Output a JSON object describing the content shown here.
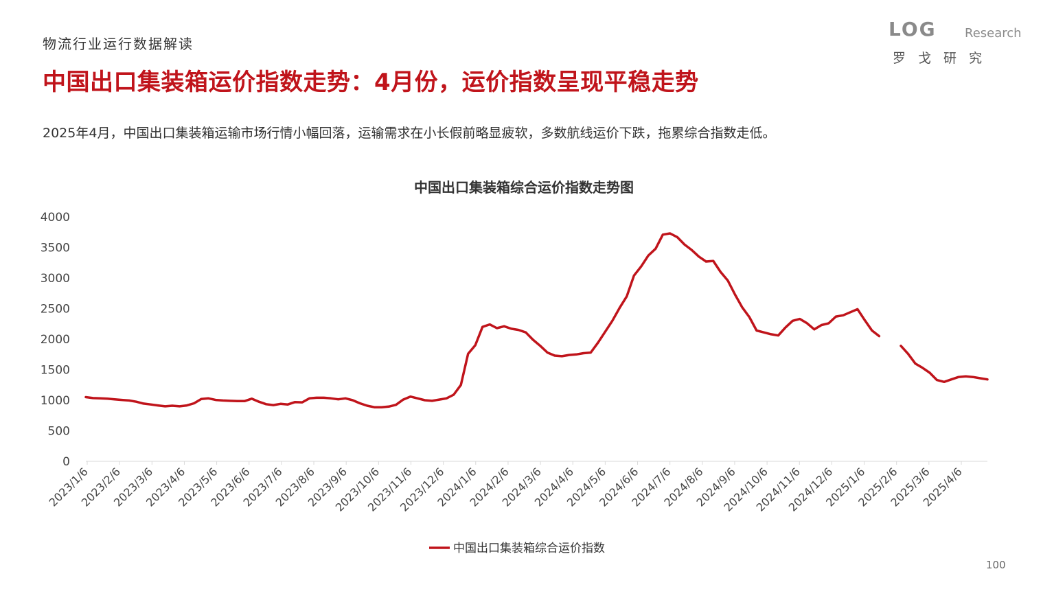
{
  "header": {
    "section_label": "物流行业运行数据解读",
    "title": "中国出口集装箱运价指数走势：4月份，运价指数呈现平稳走势",
    "summary": "2025年4月，中国出口集装箱运输市场行情小幅回落，运输需求在小长假前略显疲软，多数航线运价下跌，拖累综合指数走低。"
  },
  "logo": {
    "mark": "LOG",
    "research": "Research",
    "chinese": "罗戈研究",
    "accent_color": "#c0141b",
    "gray_color": "#8a8a8a"
  },
  "page_number": "100",
  "colors": {
    "accent": "#c0141b",
    "text": "#333333",
    "axis": "#d9d9d9"
  },
  "chart_data": {
    "type": "line",
    "title": "中国出口集装箱综合运价指数走势图",
    "xlabel": "",
    "ylabel": "",
    "ylim": [
      0,
      4000
    ],
    "yticks": [
      0,
      500,
      1000,
      1500,
      2000,
      2500,
      3000,
      3500,
      4000
    ],
    "grid": false,
    "legend_position": "bottom",
    "x_tick_labels": [
      "2023/1/6",
      "2023/2/6",
      "2023/3/6",
      "2023/4/6",
      "2023/5/6",
      "2023/6/6",
      "2023/7/6",
      "2023/8/6",
      "2023/9/6",
      "2023/10/6",
      "2023/11/6",
      "2023/12/6",
      "2024/1/6",
      "2024/2/6",
      "2024/3/6",
      "2024/4/6",
      "2024/5/6",
      "2024/6/6",
      "2024/7/6",
      "2024/8/6",
      "2024/9/6",
      "2024/10/6",
      "2024/11/6",
      "2024/12/6",
      "2025/1/6",
      "2025/2/6",
      "2025/3/6",
      "2025/4/6"
    ],
    "series": [
      {
        "name": "中国出口集装箱综合运价指数",
        "color": "#c0141b",
        "values": [
          1050,
          1035,
          1030,
          1025,
          1015,
          1005,
          995,
          975,
          945,
          930,
          915,
          900,
          910,
          900,
          915,
          950,
          1020,
          1030,
          1005,
          995,
          990,
          985,
          985,
          1025,
          975,
          935,
          920,
          940,
          930,
          970,
          965,
          1030,
          1040,
          1040,
          1030,
          1015,
          1030,
          1000,
          950,
          910,
          885,
          885,
          895,
          925,
          1010,
          1060,
          1030,
          1000,
          990,
          1010,
          1030,
          1090,
          1250,
          1760,
          1900,
          2200,
          2240,
          2180,
          2210,
          2170,
          2150,
          2110,
          1990,
          1890,
          1780,
          1730,
          1720,
          1740,
          1750,
          1770,
          1780,
          1940,
          2120,
          2300,
          2510,
          2700,
          3040,
          3190,
          3370,
          3480,
          3710,
          3730,
          3670,
          3550,
          3460,
          3350,
          3270,
          3280,
          3100,
          2960,
          2730,
          2520,
          2360,
          2140,
          2110,
          2080,
          2060,
          2190,
          2300,
          2330,
          2260,
          2160,
          2230,
          2260,
          2370,
          2390,
          2440,
          2490,
          2310,
          2140,
          2050,
          null,
          null,
          1890,
          1760,
          1600,
          1530,
          1450,
          1330,
          1300,
          1340,
          1380,
          1390,
          1380,
          1360,
          1340
        ]
      }
    ]
  }
}
